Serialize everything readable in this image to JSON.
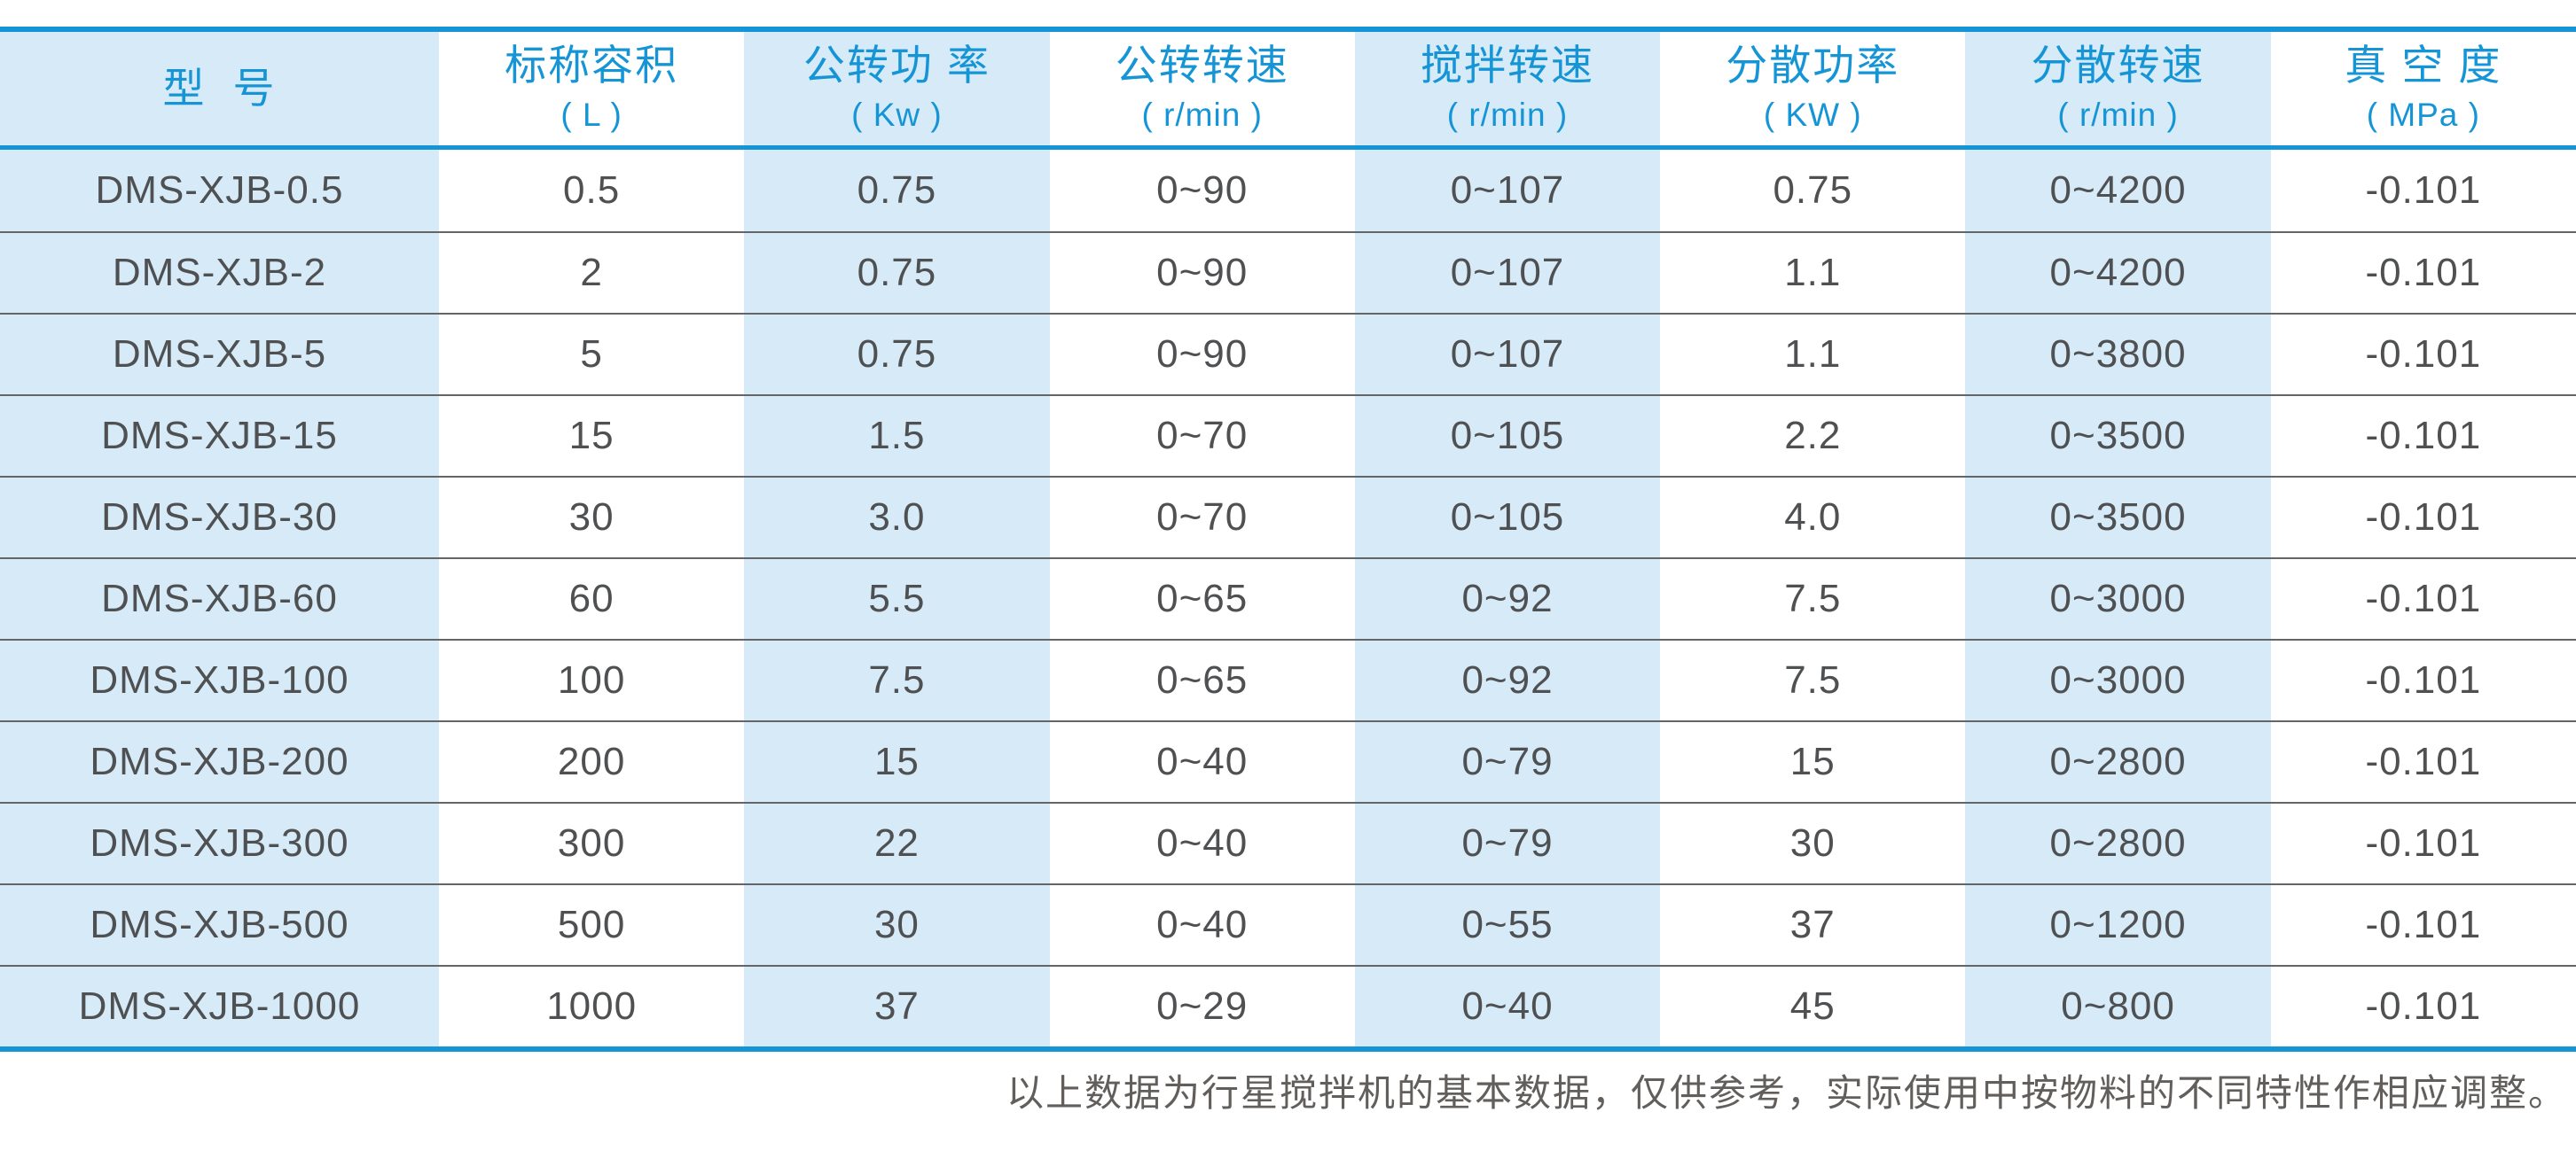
{
  "colors": {
    "accent": "#1695d6",
    "shade": "#d6eaf8",
    "text_dark": "#4f5052",
    "separator": "#636567",
    "footnote": "#615e5b",
    "page_bg": "#ffffff"
  },
  "table": {
    "columns": [
      {
        "title": "型  号",
        "unit": ""
      },
      {
        "title": "标称容积",
        "unit": "( L )"
      },
      {
        "title": "公转功 率",
        "unit": "( Kw )"
      },
      {
        "title": "公转转速",
        "unit": "( r/min )"
      },
      {
        "title": "搅拌转速",
        "unit": "( r/min )"
      },
      {
        "title": "分散功率",
        "unit": "( KW )"
      },
      {
        "title": "分散转速",
        "unit": "( r/min )"
      },
      {
        "title": "真 空 度",
        "unit": "( MPa )"
      }
    ],
    "rows": [
      [
        "DMS-XJB-0.5",
        "0.5",
        "0.75",
        "0~90",
        "0~107",
        "0.75",
        "0~4200",
        "-0.101"
      ],
      [
        "DMS-XJB-2",
        "2",
        "0.75",
        "0~90",
        "0~107",
        "1.1",
        "0~4200",
        "-0.101"
      ],
      [
        "DMS-XJB-5",
        "5",
        "0.75",
        "0~90",
        "0~107",
        "1.1",
        "0~3800",
        "-0.101"
      ],
      [
        "DMS-XJB-15",
        "15",
        "1.5",
        "0~70",
        "0~105",
        "2.2",
        "0~3500",
        "-0.101"
      ],
      [
        "DMS-XJB-30",
        "30",
        "3.0",
        "0~70",
        "0~105",
        "4.0",
        "0~3500",
        "-0.101"
      ],
      [
        "DMS-XJB-60",
        "60",
        "5.5",
        "0~65",
        "0~92",
        "7.5",
        "0~3000",
        "-0.101"
      ],
      [
        "DMS-XJB-100",
        "100",
        "7.5",
        "0~65",
        "0~92",
        "7.5",
        "0~3000",
        "-0.101"
      ],
      [
        "DMS-XJB-200",
        "200",
        "15",
        "0~40",
        "0~79",
        "15",
        "0~2800",
        "-0.101"
      ],
      [
        "DMS-XJB-300",
        "300",
        "22",
        "0~40",
        "0~79",
        "30",
        "0~2800",
        "-0.101"
      ],
      [
        "DMS-XJB-500",
        "500",
        "30",
        "0~40",
        "0~55",
        "37",
        "0~1200",
        "-0.101"
      ],
      [
        "DMS-XJB-1000",
        "1000",
        "37",
        "0~29",
        "0~40",
        "45",
        "0~800",
        "-0.101"
      ]
    ]
  },
  "footnote": "以上数据为行星搅拌机的基本数据，仅供参考，实际使用中按物料的不同特性作相应调整。"
}
